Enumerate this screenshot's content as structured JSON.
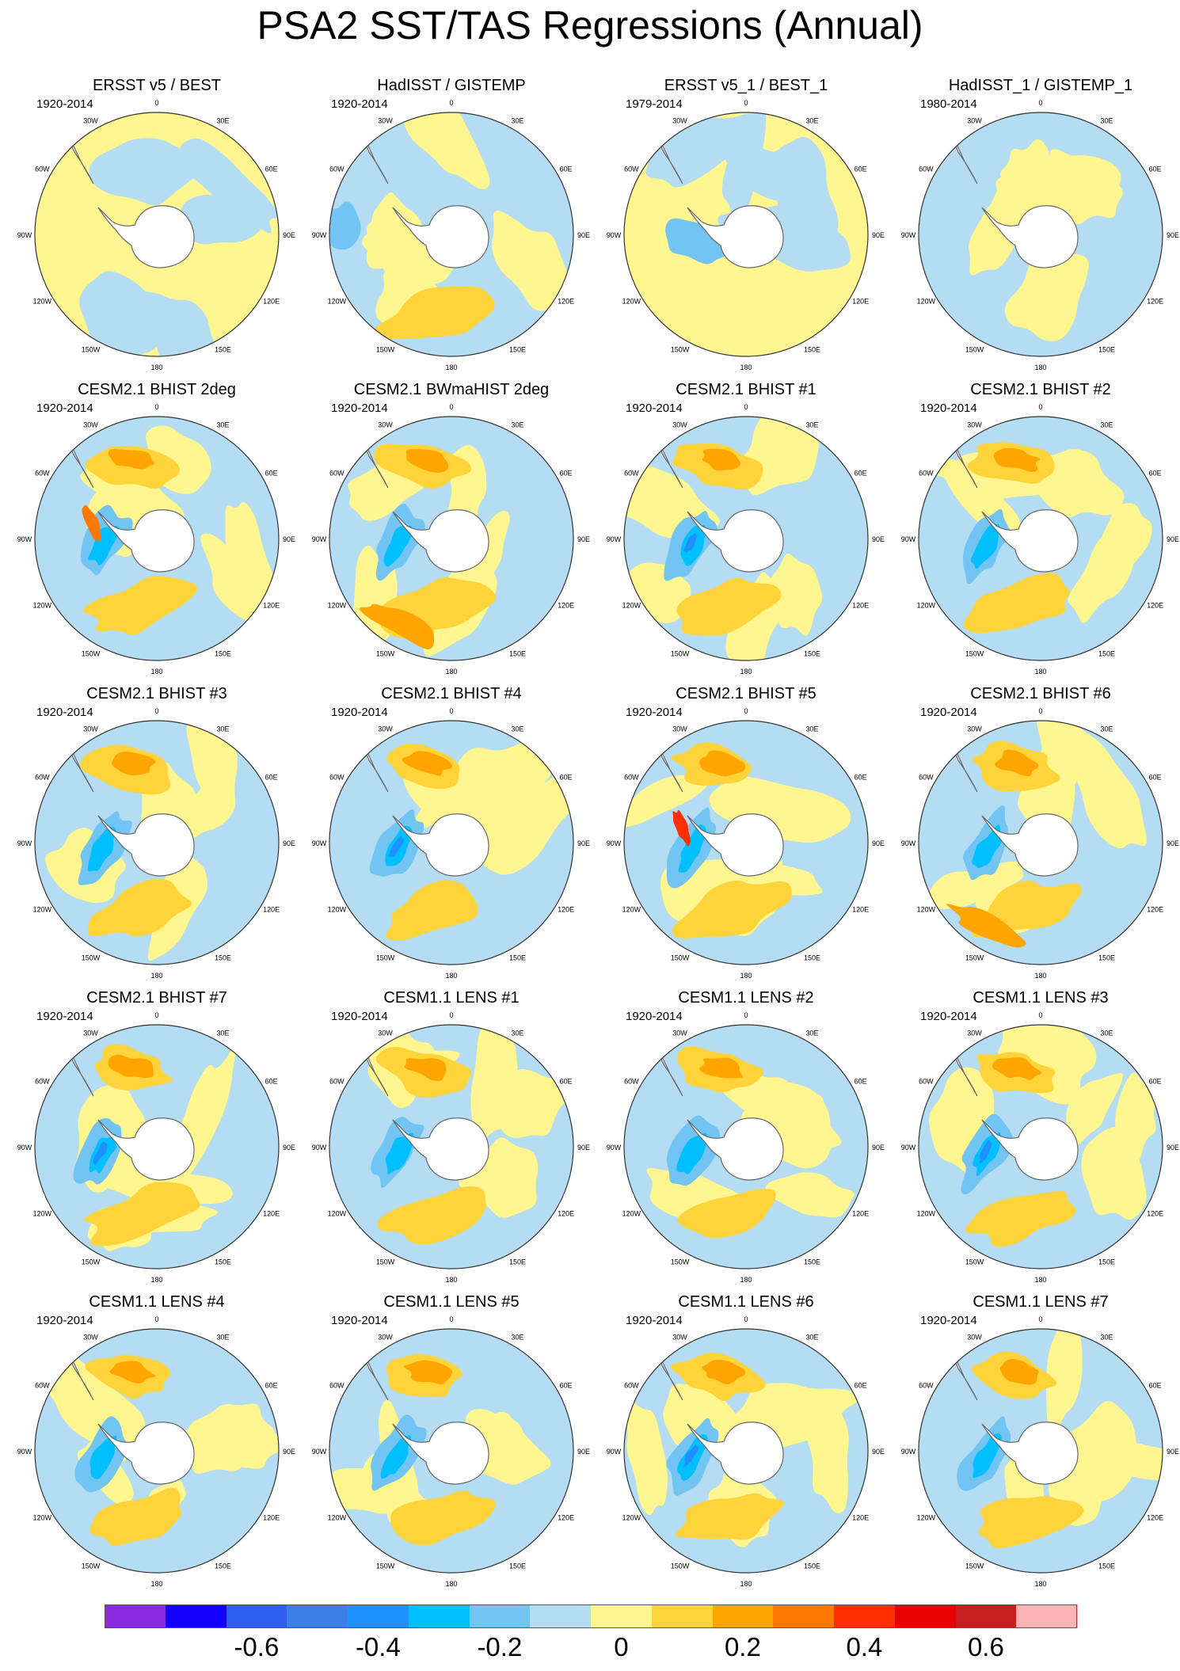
{
  "title": "PSA2 SST/TAS Regressions (Annual)",
  "lon_labels": [
    "0",
    "30E",
    "60E",
    "90E",
    "120E",
    "150E",
    "180",
    "150W",
    "120W",
    "90W",
    "60W",
    "30W"
  ],
  "panels": [
    {
      "title": "ERSST v5 / BEST",
      "period": "1920-2014"
    },
    {
      "title": "HadISST / GISTEMP",
      "period": "1920-2014"
    },
    {
      "title": "ERSST v5_1 / BEST_1",
      "period": "1979-2014"
    },
    {
      "title": "HadISST_1 / GISTEMP_1",
      "period": "1980-2014"
    },
    {
      "title": "CESM2.1 BHIST 2deg",
      "period": "1920-2014"
    },
    {
      "title": "CESM2.1 BWmaHIST 2deg",
      "period": "1920-2014"
    },
    {
      "title": "CESM2.1 BHIST #1",
      "period": "1920-2014"
    },
    {
      "title": "CESM2.1 BHIST #2",
      "period": "1920-2014"
    },
    {
      "title": "CESM2.1 BHIST #3",
      "period": "1920-2014"
    },
    {
      "title": "CESM2.1 BHIST #4",
      "period": "1920-2014"
    },
    {
      "title": "CESM2.1 BHIST #5",
      "period": "1920-2014"
    },
    {
      "title": "CESM2.1 BHIST #6",
      "period": "1920-2014"
    },
    {
      "title": "CESM2.1 BHIST #7",
      "period": "1920-2014"
    },
    {
      "title": "CESM1.1 LENS #1",
      "period": "1920-2014"
    },
    {
      "title": "CESM1.1 LENS #2",
      "period": "1920-2014"
    },
    {
      "title": "CESM1.1 LENS #3",
      "period": "1920-2014"
    },
    {
      "title": "CESM1.1 LENS #4",
      "period": "1920-2014"
    },
    {
      "title": "CESM1.1 LENS #5",
      "period": "1920-2014"
    },
    {
      "title": "CESM1.1 LENS #6",
      "period": "1920-2014"
    },
    {
      "title": "CESM1.1 LENS #7",
      "period": "1920-2014"
    }
  ],
  "colorbar": {
    "colors": [
      "#8a2be2",
      "#1400ff",
      "#2f5ef0",
      "#3b7fe8",
      "#1e90ff",
      "#00bfff",
      "#72c4f2",
      "#b4dcf2",
      "#fff68f",
      "#ffd43a",
      "#ffa500",
      "#ff7800",
      "#ff3000",
      "#e60000",
      "#c81e1e",
      "#ffb4b4"
    ],
    "tick_labels": [
      "-0.6",
      "-0.4",
      "-0.2",
      "0",
      "0.2",
      "0.4",
      "0.6"
    ]
  }
}
